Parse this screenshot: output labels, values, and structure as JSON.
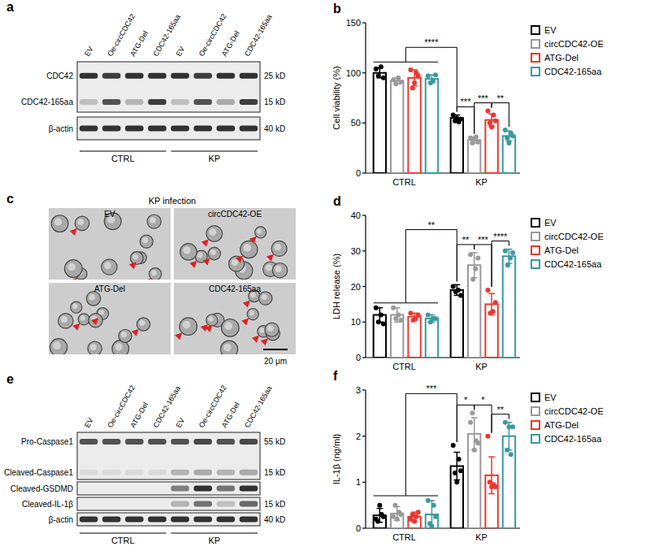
{
  "chart_data": [
    {
      "panel": "b",
      "type": "bar",
      "ylabel": "Cell viability (%)",
      "categories": [
        "CTRL",
        "KP"
      ],
      "ylim": [
        0,
        150
      ],
      "yticks": [
        0,
        50,
        100,
        150
      ],
      "legend": "right",
      "series": [
        {
          "name": "EV",
          "color": "#000000",
          "values": [
            100,
            55
          ],
          "errors": [
            5,
            3
          ],
          "points": [
            [
              104,
              97,
              106,
              95
            ],
            [
              58,
              52,
              55,
              51,
              54
            ]
          ]
        },
        {
          "name": "circCDC42-OE",
          "color": "#9a9a9a",
          "values": [
            92,
            33
          ],
          "errors": [
            3,
            3
          ],
          "points": [
            [
              93,
              89,
              95,
              91
            ],
            [
              35,
              30,
              34,
              36,
              31
            ]
          ]
        },
        {
          "name": "ATG-Del",
          "color": "#e8382f",
          "values": [
            95,
            53
          ],
          "errors": [
            8,
            6
          ],
          "points": [
            [
              103,
              85,
              90,
              100,
              97
            ],
            [
              62,
              50,
              46,
              58,
              52
            ]
          ]
        },
        {
          "name": "CDC42-165aa",
          "color": "#3a9aa0",
          "values": [
            94,
            37
          ],
          "errors": [
            4,
            5
          ],
          "points": [
            [
              97,
              90,
              92,
              98
            ],
            [
              43,
              35,
              30,
              40,
              37
            ]
          ]
        }
      ],
      "comparisons": [
        {
          "label": "****",
          "from": {
            "category": "CTRL"
          },
          "to": {
            "category": "KP",
            "series": "EV"
          }
        },
        {
          "label": "***",
          "from": {
            "category": "KP",
            "series": "EV"
          },
          "to": {
            "category": "KP",
            "series": "circCDC42-OE"
          }
        },
        {
          "label": "***",
          "from": {
            "category": "KP",
            "series": "circCDC42-OE"
          },
          "to": {
            "category": "KP",
            "series": "ATG-Del"
          }
        },
        {
          "label": "**",
          "from": {
            "category": "KP",
            "series": "ATG-Del"
          },
          "to": {
            "category": "KP",
            "series": "CDC42-165aa"
          }
        }
      ]
    },
    {
      "panel": "d",
      "type": "bar",
      "ylabel": "LDH release (%)",
      "categories": [
        "CTRL",
        "KP"
      ],
      "ylim": [
        0,
        40
      ],
      "yticks": [
        0,
        10,
        20,
        30,
        40
      ],
      "legend": "right",
      "series": [
        {
          "name": "EV",
          "color": "#000000",
          "values": [
            12,
            19
          ],
          "errors": [
            2,
            1.5
          ],
          "points": [
            [
              14,
              10,
              12,
              9.5
            ],
            [
              20,
              18.5,
              19,
              17.5
            ]
          ]
        },
        {
          "name": "circCDC42-OE",
          "color": "#9a9a9a",
          "values": [
            12,
            26
          ],
          "errors": [
            2,
            3.5
          ],
          "points": [
            [
              14,
              11,
              12,
              10.5
            ],
            [
              29,
              22,
              25,
              28
            ]
          ]
        },
        {
          "name": "ATG-Del",
          "color": "#e8382f",
          "values": [
            11.5,
            15
          ],
          "errors": [
            1,
            3
          ],
          "points": [
            [
              12.5,
              10.5,
              11,
              12
            ],
            [
              19,
              12.5,
              13,
              15.5
            ]
          ]
        },
        {
          "name": "CDC42-165aa",
          "color": "#3a9aa0",
          "values": [
            11,
            28.5
          ],
          "errors": [
            1,
            2
          ],
          "points": [
            [
              12,
              10,
              11,
              11
            ],
            [
              30,
              26,
              28,
              29.5
            ]
          ]
        }
      ],
      "comparisons": [
        {
          "label": "**",
          "from": {
            "category": "CTRL"
          },
          "to": {
            "category": "KP",
            "series": "EV"
          }
        },
        {
          "label": "**",
          "from": {
            "category": "KP",
            "series": "EV"
          },
          "to": {
            "category": "KP",
            "series": "circCDC42-OE"
          }
        },
        {
          "label": "***",
          "from": {
            "category": "KP",
            "series": "circCDC42-OE"
          },
          "to": {
            "category": "KP",
            "series": "ATG-Del"
          }
        },
        {
          "label": "****",
          "from": {
            "category": "KP",
            "series": "ATG-Del"
          },
          "to": {
            "category": "KP",
            "series": "CDC42-165aa"
          }
        }
      ]
    },
    {
      "panel": "f",
      "type": "bar",
      "ylabel": "IL-1β (ng/ml)",
      "categories": [
        "CTRL",
        "KP"
      ],
      "ylim": [
        0,
        3
      ],
      "yticks": [
        0,
        1,
        2,
        3
      ],
      "legend": "right",
      "series": [
        {
          "name": "EV",
          "color": "#000000",
          "values": [
            0.28,
            1.35
          ],
          "errors": [
            0.15,
            0.3
          ],
          "points": [
            [
              0.2,
              0.15,
              0.5,
              0.3,
              0.25
            ],
            [
              1.8,
              1.2,
              1.0,
              1.5,
              1.25
            ]
          ]
        },
        {
          "name": "circCDC42-OE",
          "color": "#9a9a9a",
          "values": [
            0.32,
            2.05
          ],
          "errors": [
            0.15,
            0.35
          ],
          "points": [
            [
              0.25,
              0.5,
              0.2,
              0.35,
              0.3
            ],
            [
              2.3,
              2.5,
              1.7,
              1.9,
              1.85
            ]
          ]
        },
        {
          "name": "ATG-Del",
          "color": "#e8382f",
          "values": [
            0.25,
            1.15
          ],
          "errors": [
            0.1,
            0.4
          ],
          "points": [
            [
              0.2,
              0.3,
              0.15,
              0.25,
              0.35
            ],
            [
              2.0,
              1.0,
              0.9,
              0.95,
              0.9
            ]
          ]
        },
        {
          "name": "CDC42-165aa",
          "color": "#3a9aa0",
          "values": [
            0.3,
            2.0
          ],
          "errors": [
            0.3,
            0.3
          ],
          "points": [
            [
              0.6,
              0.1,
              0.05,
              0.5,
              0.25
            ],
            [
              2.3,
              1.7,
              2.2,
              1.6,
              2.2
            ]
          ]
        }
      ],
      "comparisons": [
        {
          "label": "***",
          "from": {
            "category": "CTRL"
          },
          "to": {
            "category": "KP",
            "series": "EV"
          }
        },
        {
          "label": "*",
          "from": {
            "category": "KP",
            "series": "EV"
          },
          "to": {
            "category": "KP",
            "series": "circCDC42-OE"
          }
        },
        {
          "label": "*",
          "from": {
            "category": "KP",
            "series": "circCDC42-OE"
          },
          "to": {
            "category": "KP",
            "series": "ATG-Del"
          }
        },
        {
          "label": "**",
          "from": {
            "category": "KP",
            "series": "ATG-Del"
          },
          "to": {
            "category": "KP",
            "series": "CDC42-165aa"
          }
        }
      ]
    }
  ],
  "blots": [
    {
      "panel": "a",
      "lanes": [
        "EV",
        "Oe-circCDC42",
        "ATG-Del",
        "CDC42-165aa",
        "EV",
        "Oe-circCDC42",
        "ATG-Del",
        "CDC42-165aa"
      ],
      "groups": [
        "CTRL",
        "KP"
      ],
      "membranes": [
        {
          "bands": [
            {
              "label": "CDC42",
              "kd": "25 kD"
            },
            {
              "label": "CDC42-165aa",
              "kd": "15 kD"
            }
          ]
        },
        {
          "bands": [
            {
              "label": "β-actin",
              "kd": "40 kD"
            }
          ]
        }
      ]
    },
    {
      "panel": "e",
      "lanes": [
        "EV",
        "Oe-circCDC42",
        "ATG-Del",
        "CDC42-165aa",
        "EV",
        "Oe-circCDC42",
        "ATG-Del",
        "CDC42-165aa"
      ],
      "groups": [
        "CTRL",
        "KP"
      ],
      "membranes": [
        {
          "bands": [
            {
              "label": "Pro-Caspase1",
              "kd": "55 kD"
            },
            {
              "label": "Cleaved-Caspase1",
              "kd": "15 kD"
            }
          ]
        },
        {
          "bands": [
            {
              "label": "Cleaved-GSDMD"
            }
          ]
        },
        {
          "bands": [
            {
              "label": "Cleaved-IL-1β",
              "kd": "15 kD"
            }
          ]
        },
        {
          "bands": [
            {
              "label": "β-actin",
              "kd": "40 kD"
            }
          ]
        }
      ]
    }
  ],
  "micrographs": {
    "panel": "c",
    "title": "KP infection",
    "images": [
      "EV",
      "circCDC42-OE",
      "ATG-Del",
      "CDC42-165aa"
    ],
    "scale_bar": "20 μm"
  }
}
